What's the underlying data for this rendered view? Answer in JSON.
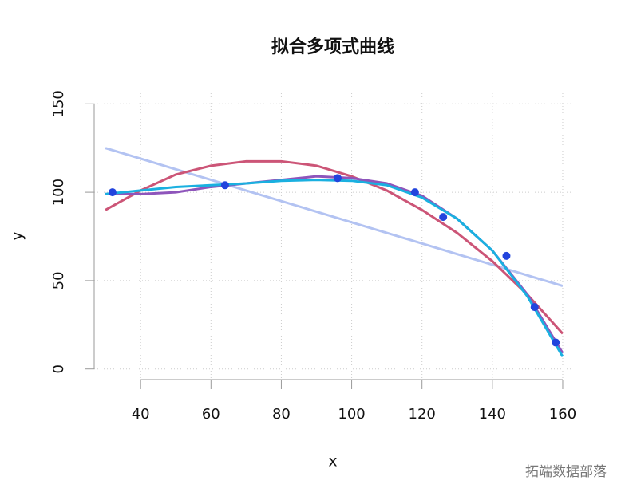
{
  "chart_data": {
    "type": "line",
    "title": "拟合多项式曲线",
    "x_label": "x",
    "y_label": "y",
    "xlim": [
      26.8,
      162.5
    ],
    "ylim": [
      -6,
      156
    ],
    "xticks": [
      40,
      60,
      80,
      100,
      120,
      140,
      160
    ],
    "yticks": [
      0,
      50,
      100,
      150
    ],
    "grid": true,
    "series": [
      {
        "color": "#b3c3f2",
        "x": [
          30,
          40,
          50,
          60,
          70,
          80,
          90,
          100,
          110,
          120,
          130,
          140,
          150,
          160
        ],
        "values": [
          125,
          119,
          113,
          107,
          101,
          95,
          89,
          83,
          77,
          71,
          65,
          59,
          53,
          47
        ]
      },
      {
        "color": "#cc5577",
        "x": [
          30,
          40,
          50,
          60,
          70,
          80,
          90,
          100,
          110,
          120,
          130,
          140,
          150,
          160
        ],
        "values": [
          90,
          101,
          110,
          115,
          117.5,
          117.5,
          115,
          109,
          101,
          90,
          77,
          61,
          42,
          20
        ]
      },
      {
        "color": "#8e55bb",
        "x": [
          30,
          40,
          50,
          60,
          70,
          80,
          90,
          100,
          110,
          120,
          130,
          140,
          150,
          160
        ],
        "values": [
          99,
          99,
          100,
          103,
          105,
          107,
          109,
          108,
          105,
          98,
          85,
          67,
          42,
          9
        ]
      },
      {
        "color": "#1ab0e0",
        "x": [
          30,
          40,
          50,
          60,
          70,
          80,
          90,
          100,
          110,
          120,
          130,
          140,
          150,
          160
        ],
        "values": [
          99,
          101,
          103,
          104,
          105,
          106.5,
          107,
          106.5,
          104,
          97,
          85,
          67,
          41,
          7
        ]
      }
    ],
    "points": {
      "color": "#2244dd",
      "x": [
        32,
        64,
        96,
        118,
        126,
        144,
        152,
        158
      ],
      "values": [
        100,
        104,
        108,
        100,
        86,
        64,
        35,
        15
      ]
    },
    "watermark": "拓端数据部落"
  }
}
